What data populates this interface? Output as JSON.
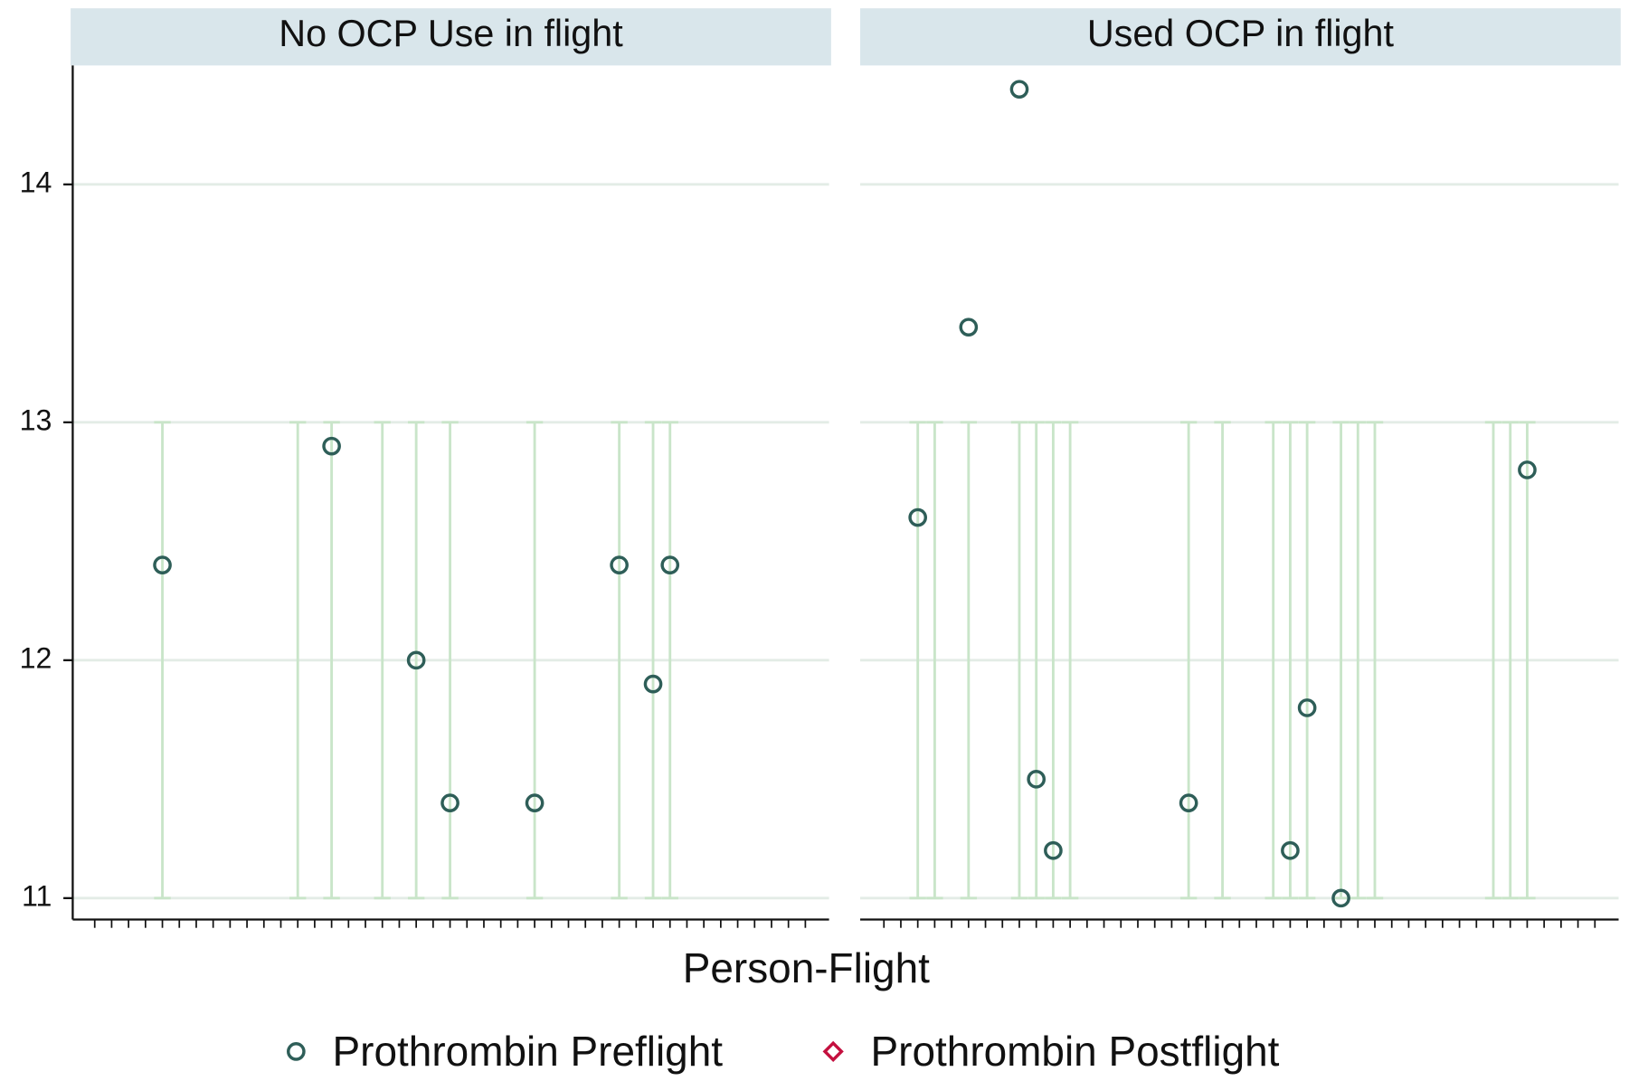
{
  "chart_data": [
    {
      "type": "scatter",
      "title": "No OCP Use in flight",
      "xlabel": "Person-Flight",
      "xlim": [
        -1.3,
        43.4
      ],
      "xticks": [
        0,
        1,
        2,
        3,
        4,
        5,
        6,
        7,
        8,
        9,
        10,
        11,
        12,
        13,
        14,
        15,
        16,
        17,
        18,
        19,
        20,
        21,
        22,
        23,
        24,
        25,
        26,
        27,
        28,
        29,
        30,
        31,
        32,
        33,
        34,
        35,
        36,
        37,
        38,
        39,
        40,
        41,
        42
      ],
      "ylim": [
        10.91,
        14.5
      ],
      "yticks": [
        11,
        12,
        13,
        14
      ],
      "grid": true,
      "range_color": "#c9e5c9",
      "range_x": [
        4,
        12,
        14,
        17,
        19,
        21,
        26,
        31,
        33,
        34
      ],
      "range_low": [
        11,
        11,
        11,
        11,
        11,
        11,
        11,
        11,
        11,
        11
      ],
      "range_high": [
        13,
        13,
        13,
        13,
        13,
        13,
        13,
        13,
        13,
        13
      ],
      "series": [
        {
          "name": "Prothrombin Preflight",
          "color": "#2e5e58",
          "marker": "circle",
          "x": [
            4,
            14,
            19,
            21,
            26,
            31,
            33,
            34
          ],
          "values": [
            12.4,
            12.9,
            12.0,
            11.4,
            11.4,
            12.4,
            11.9,
            12.4
          ]
        },
        {
          "name": "Prothrombin Postflight",
          "color": "#c4103f",
          "marker": "diamond",
          "x": [],
          "values": []
        }
      ]
    },
    {
      "type": "scatter",
      "title": "Used OCP in flight",
      "xlim": [
        -0.4,
        44.4
      ],
      "xticks": [
        1,
        2,
        3,
        4,
        5,
        6,
        7,
        8,
        9,
        10,
        11,
        12,
        13,
        14,
        15,
        16,
        17,
        18,
        19,
        20,
        21,
        22,
        23,
        24,
        25,
        26,
        27,
        28,
        29,
        30,
        31,
        32,
        33,
        34,
        35,
        36,
        37,
        38,
        39,
        40,
        41,
        42,
        43
      ],
      "ylim": [
        10.91,
        14.5
      ],
      "yticks": [
        11,
        12,
        13,
        14
      ],
      "grid": true,
      "range_color": "#c9e5c9",
      "range_x": [
        3,
        4,
        6,
        9,
        10,
        11,
        12,
        19,
        21,
        24,
        25,
        26,
        28,
        29,
        30,
        37,
        38,
        39
      ],
      "range_low": [
        11,
        11,
        11,
        11,
        11,
        11,
        11,
        11,
        11,
        11,
        11,
        11,
        11,
        11,
        11,
        11,
        11,
        11
      ],
      "range_high": [
        13,
        13,
        13,
        13,
        13,
        13,
        13,
        13,
        13,
        13,
        13,
        13,
        13,
        13,
        13,
        13,
        13,
        13
      ],
      "series": [
        {
          "name": "Prothrombin Preflight",
          "color": "#2e5e58",
          "marker": "circle",
          "x": [
            3,
            6,
            9,
            10,
            11,
            19,
            25,
            26,
            28,
            39
          ],
          "values": [
            12.6,
            13.4,
            14.4,
            11.5,
            11.2,
            11.4,
            11.2,
            11.8,
            11.0,
            12.8
          ]
        },
        {
          "name": "Prothrombin Postflight",
          "color": "#c4103f",
          "marker": "diamond",
          "x": [],
          "values": []
        }
      ]
    }
  ]
}
